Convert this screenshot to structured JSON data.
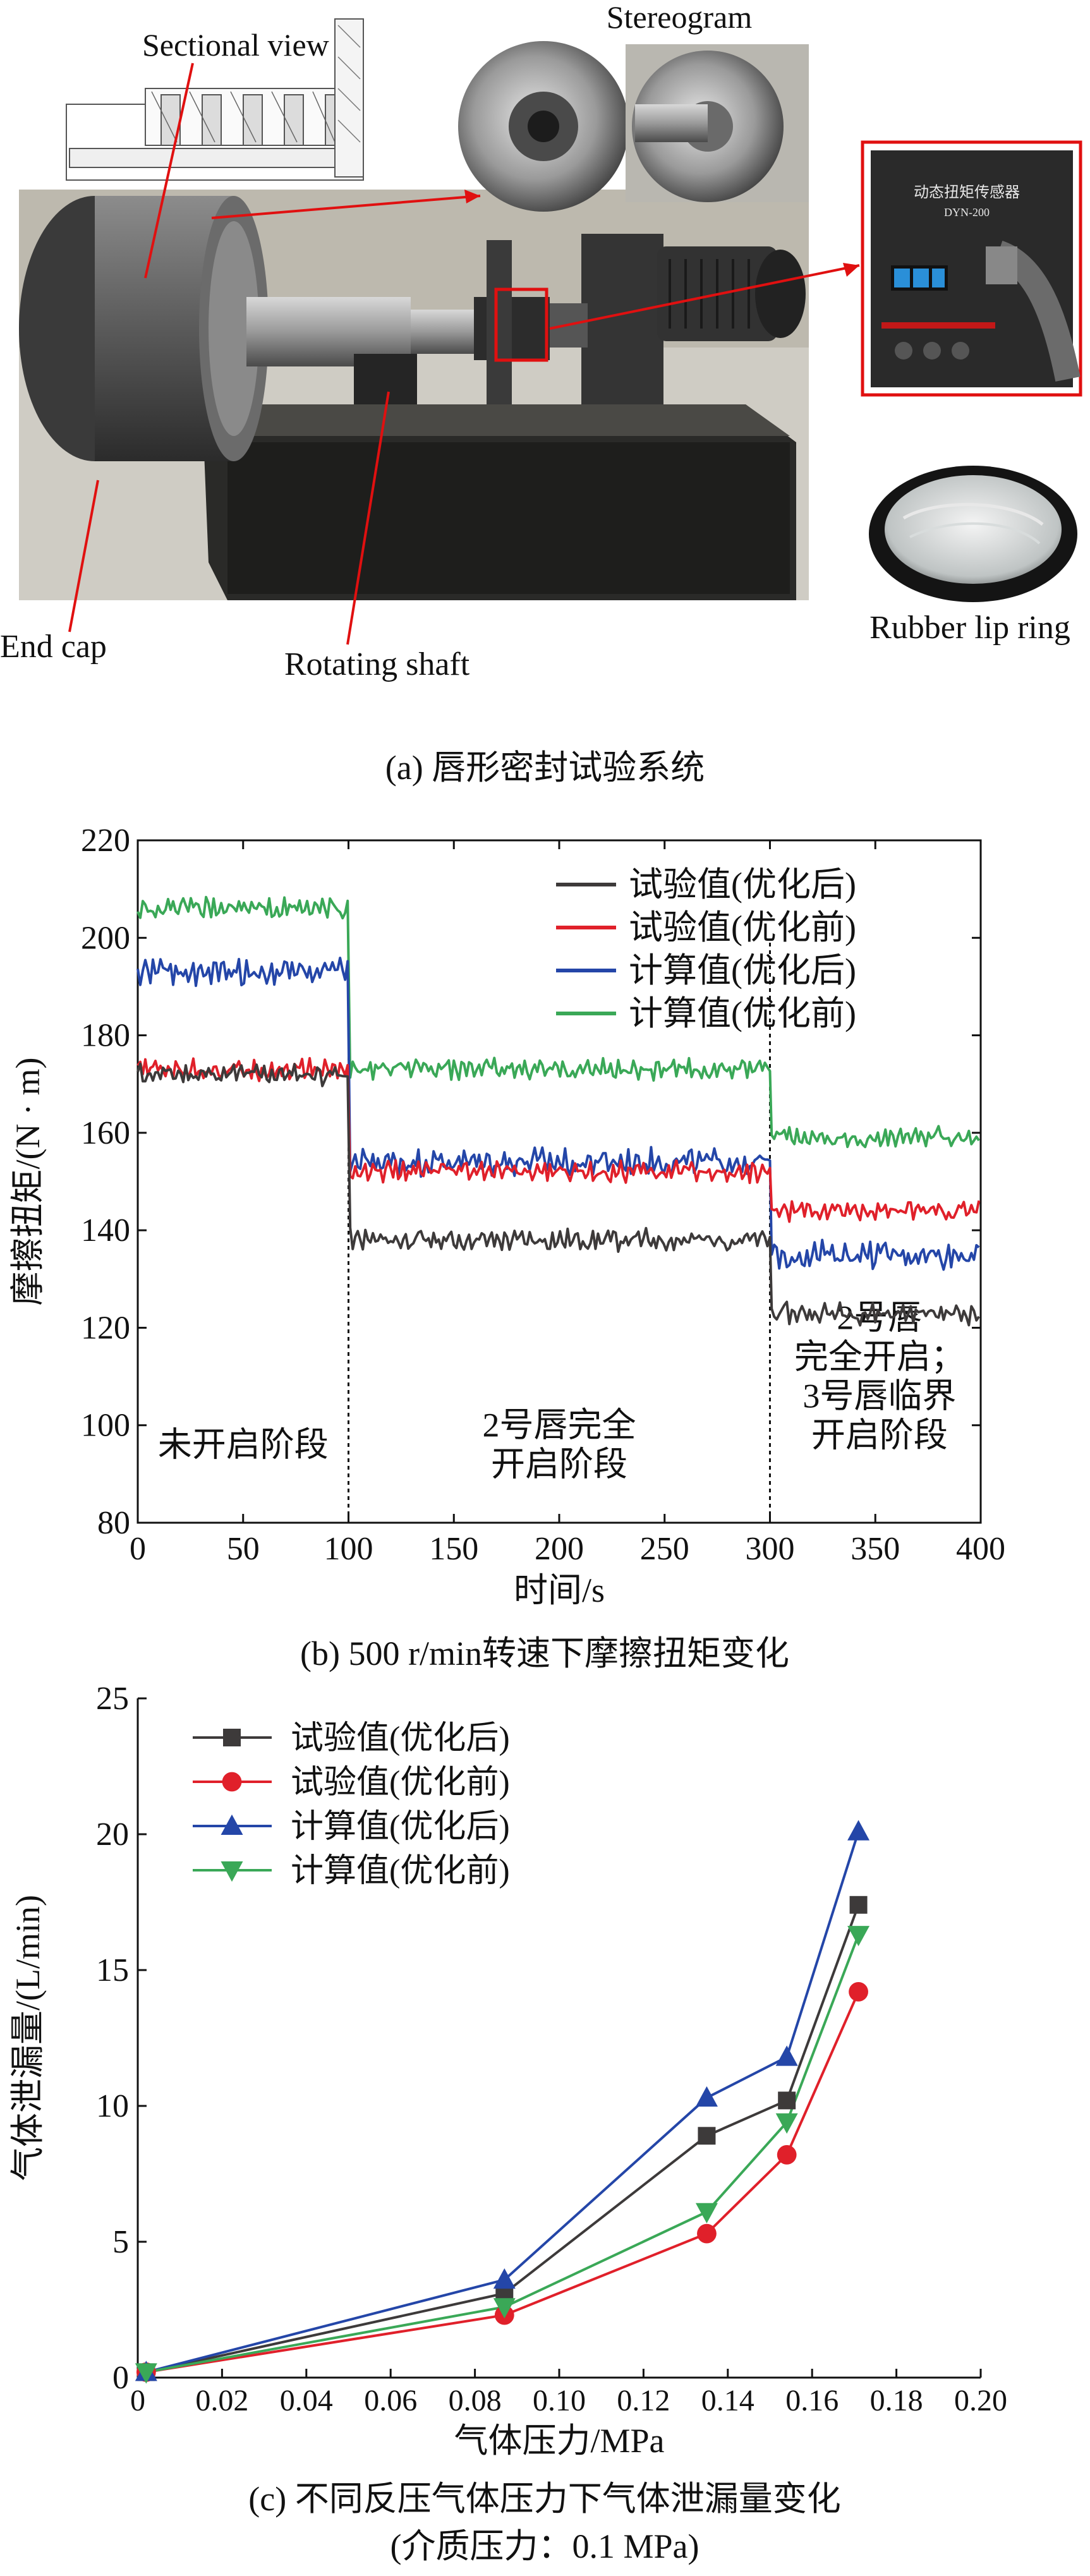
{
  "panel_a": {
    "labels": {
      "sectional_view": "Sectional view",
      "stereogram": "Stereogram",
      "end_cap": "End cap",
      "rotating_shaft": "Rotating shaft",
      "rubber_lip_ring": "Rubber lip ring",
      "sensor_title": "动态扭矩传感器",
      "sensor_model": "DYN-200"
    },
    "caption": "(a) 唇形密封试验系统"
  },
  "chart_data": [
    {
      "type": "line",
      "caption": "(b) 500 r/min转速下摩擦扭矩变化",
      "xlabel": "时间/s",
      "ylabel": "摩擦扭矩/(N · m)",
      "xlim": [
        0,
        400
      ],
      "ylim": [
        80,
        220
      ],
      "xticks": [
        0,
        50,
        100,
        150,
        200,
        250,
        300,
        350,
        400
      ],
      "yticks": [
        80,
        100,
        120,
        140,
        160,
        180,
        200,
        220
      ],
      "grid": false,
      "legend_position": "top-right",
      "phase_boundaries": [
        100,
        300
      ],
      "phase_labels": [
        {
          "lines": [
            "未开启阶段"
          ],
          "x": 50,
          "y": 96
        },
        {
          "lines": [
            "2号唇完全",
            "开启阶段"
          ],
          "x": 200,
          "y": 96
        },
        {
          "lines": [
            "2号唇",
            "完全开启；",
            "3号唇临界",
            "开启阶段"
          ],
          "x": 352,
          "y": 110
        }
      ],
      "series": [
        {
          "name": "试验值(优化后)",
          "color": "#3d3a3a",
          "segments": [
            [
              0,
              100,
              172
            ],
            [
              100,
              300,
              138
            ],
            [
              300,
              400,
              123
            ]
          ]
        },
        {
          "name": "试验值(优化前)",
          "color": "#e0202a",
          "segments": [
            [
              0,
              100,
              173
            ],
            [
              100,
              300,
              152
            ],
            [
              300,
              400,
              144
            ]
          ]
        },
        {
          "name": "计算值(优化后)",
          "color": "#2446a8",
          "segments": [
            [
              0,
              100,
              193
            ],
            [
              100,
              300,
              154
            ],
            [
              300,
              400,
              135
            ]
          ]
        },
        {
          "name": "计算值(优化前)",
          "color": "#3aa857",
          "segments": [
            [
              0,
              100,
              206
            ],
            [
              100,
              300,
              173
            ],
            [
              300,
              400,
              159
            ]
          ]
        }
      ]
    },
    {
      "type": "line",
      "caption": "(c) 不同反压气体压力下气体泄漏量变化",
      "caption_sub": "(介质压力：0.1 MPa)",
      "xlabel": "气体压力/MPa",
      "ylabel": "气体泄漏量/(L/min)",
      "xlim": [
        0,
        0.2
      ],
      "ylim": [
        0,
        25
      ],
      "xticks": [
        "0",
        "0.02",
        "0.04",
        "0.06",
        "0.08",
        "0.10",
        "0.12",
        "0.14",
        "0.16",
        "0.18",
        "0.20"
      ],
      "yticks": [
        0,
        5,
        10,
        15,
        20,
        25
      ],
      "grid": false,
      "legend_position": "top-left",
      "x": [
        0.002,
        0.087,
        0.135,
        0.154,
        0.171
      ],
      "series": [
        {
          "name": "试验值(优化后)",
          "color": "#3d3a3a",
          "marker": "square",
          "values": [
            0.2,
            3.1,
            8.9,
            10.2,
            17.4
          ]
        },
        {
          "name": "试验值(优化前)",
          "color": "#e0202a",
          "marker": "circle",
          "values": [
            0.2,
            2.3,
            5.3,
            8.2,
            14.2
          ]
        },
        {
          "name": "计算值(优化后)",
          "color": "#2446a8",
          "marker": "triangle-up",
          "values": [
            0.2,
            3.6,
            10.3,
            11.8,
            20.1
          ]
        },
        {
          "name": "计算值(优化前)",
          "color": "#3aa857",
          "marker": "triangle-down",
          "values": [
            0.2,
            2.6,
            6.1,
            9.4,
            16.3
          ]
        }
      ]
    }
  ]
}
